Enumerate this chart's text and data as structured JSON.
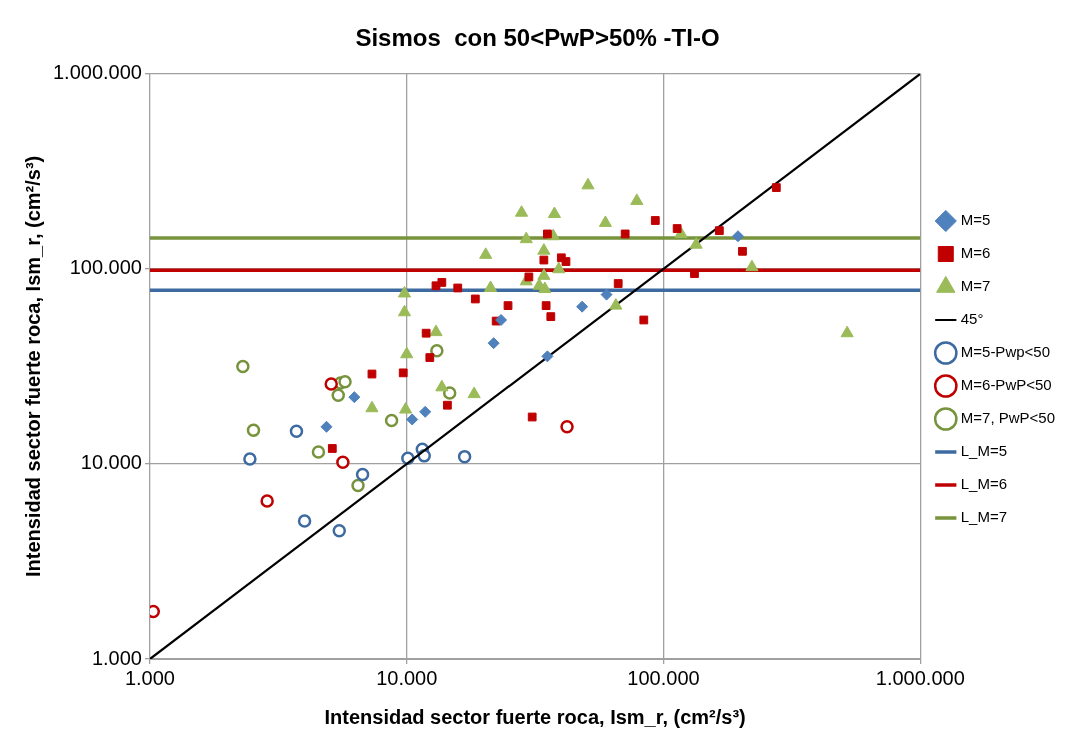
{
  "chart_data": {
    "type": "scatter",
    "title": "Sismos  con 50<PwP>50% -TI-O",
    "xlabel": "Intensidad sector fuerte roca, Ism_r, (cm²/s³)",
    "ylabel": "Intensidad sector fuerte roca, Ism_r, (cm²/s³)",
    "log": "xy",
    "grid": true,
    "legend": "right",
    "xlim": [
      1000,
      1000000
    ],
    "ylim": [
      1000,
      1000000
    ],
    "xticks": [
      {
        "value": 1000,
        "label": "1.000"
      },
      {
        "value": 10000,
        "label": "10.000"
      },
      {
        "value": 100000,
        "label": "100.000"
      },
      {
        "value": 1000000,
        "label": "1.000.000"
      }
    ],
    "yticks": [
      {
        "value": 1000,
        "label": "1.000"
      },
      {
        "value": 10000,
        "label": "10.000"
      },
      {
        "value": 100000,
        "label": "100.000"
      },
      {
        "value": 1000000,
        "label": "1.000.000"
      }
    ],
    "series": [
      {
        "name": "M=5",
        "marker": "diamond",
        "color": "#4f81bd",
        "x": [
          4870,
          6250,
          10500,
          11800,
          21800,
          23300,
          35300,
          48200,
          60000,
          195000
        ],
        "values": [
          15500,
          22000,
          16900,
          18500,
          41600,
          54700,
          35600,
          64000,
          73800,
          147000
        ]
      },
      {
        "name": "M=6",
        "marker": "square",
        "color": "#c00000",
        "x": [
          5130,
          7320,
          9690,
          11900,
          12300,
          13000,
          13700,
          15800,
          18500,
          22300,
          24800,
          14400,
          30800,
          29900,
          34200,
          40000,
          41700,
          35300,
          34900,
          36400,
          66600,
          70900,
          83800,
          92900,
          113000,
          132000,
          165000,
          203000,
          275000
        ],
        "values": [
          12000,
          28900,
          29300,
          46800,
          35100,
          81900,
          85200,
          79800,
          70100,
          54000,
          64800,
          20000,
          17400,
          90900,
          111000,
          114000,
          109000,
          151000,
          64800,
          56900,
          84100,
          151000,
          54700,
          177000,
          161000,
          94600,
          157000,
          123000,
          261000
        ]
      },
      {
        "name": "M=7",
        "marker": "triangle",
        "color": "#9bbb59",
        "x": [
          9800,
          9800,
          10000,
          13000,
          13700,
          7320,
          9900,
          18300,
          20300,
          21200,
          28000,
          29200,
          37600,
          37200,
          34200,
          39100,
          29200,
          34200,
          32800,
          34500,
          50800,
          59400,
          78700,
          117000,
          134000,
          221000,
          519000,
          65200
        ],
        "values": [
          74800,
          59900,
          36500,
          47400,
          24700,
          19300,
          19000,
          22800,
          118000,
          79800,
          194000,
          142000,
          191000,
          147000,
          124000,
          99600,
          86300,
          92100,
          81900,
          78800,
          268000,
          172000,
          223000,
          151000,
          133000,
          102000,
          46800,
          64800
        ]
      },
      {
        "name": "45°",
        "type": "line",
        "marker": "none",
        "color": "#000000",
        "x": [
          1000,
          1000000
        ],
        "values": [
          1000,
          1000000
        ]
      },
      {
        "name": "M=5-Pwp<50",
        "marker": "circle",
        "color": "#3d6aa0",
        "x": [
          2450,
          3720,
          4000,
          5460,
          6730,
          10100,
          11500,
          11700,
          16800
        ],
        "values": [
          10600,
          14700,
          5100,
          4540,
          8830,
          10700,
          11900,
          11000,
          10900
        ]
      },
      {
        "name": "M=6-PwP<50",
        "marker": "circle",
        "color": "#c00000",
        "x": [
          5080,
          5640,
          2860,
          1030,
          42100
        ],
        "values": [
          25700,
          10200,
          6460,
          1750,
          15500
        ]
      },
      {
        "name": "M=7, PwP<50",
        "marker": "circle",
        "color": "#77933c",
        "x": [
          2300,
          2530,
          4530,
          5410,
          5520,
          5750,
          6460,
          8730,
          13100,
          14700
        ],
        "values": [
          31600,
          14900,
          11500,
          22500,
          26000,
          26400,
          7750,
          16700,
          38000,
          23100
        ]
      },
      {
        "name": "L_M=5",
        "type": "line",
        "marker": "none",
        "color": "#3d6aa0",
        "x": [
          1000,
          1000000
        ],
        "values": [
          77800,
          77800
        ]
      },
      {
        "name": "L_M=6",
        "type": "line",
        "marker": "none",
        "color": "#c00000",
        "x": [
          1000,
          1000000
        ],
        "values": [
          98400,
          98400
        ]
      },
      {
        "name": "L_M=7",
        "type": "line",
        "marker": "none",
        "color": "#77933c",
        "x": [
          1000,
          1000000
        ],
        "values": [
          144000,
          144000
        ]
      }
    ]
  }
}
